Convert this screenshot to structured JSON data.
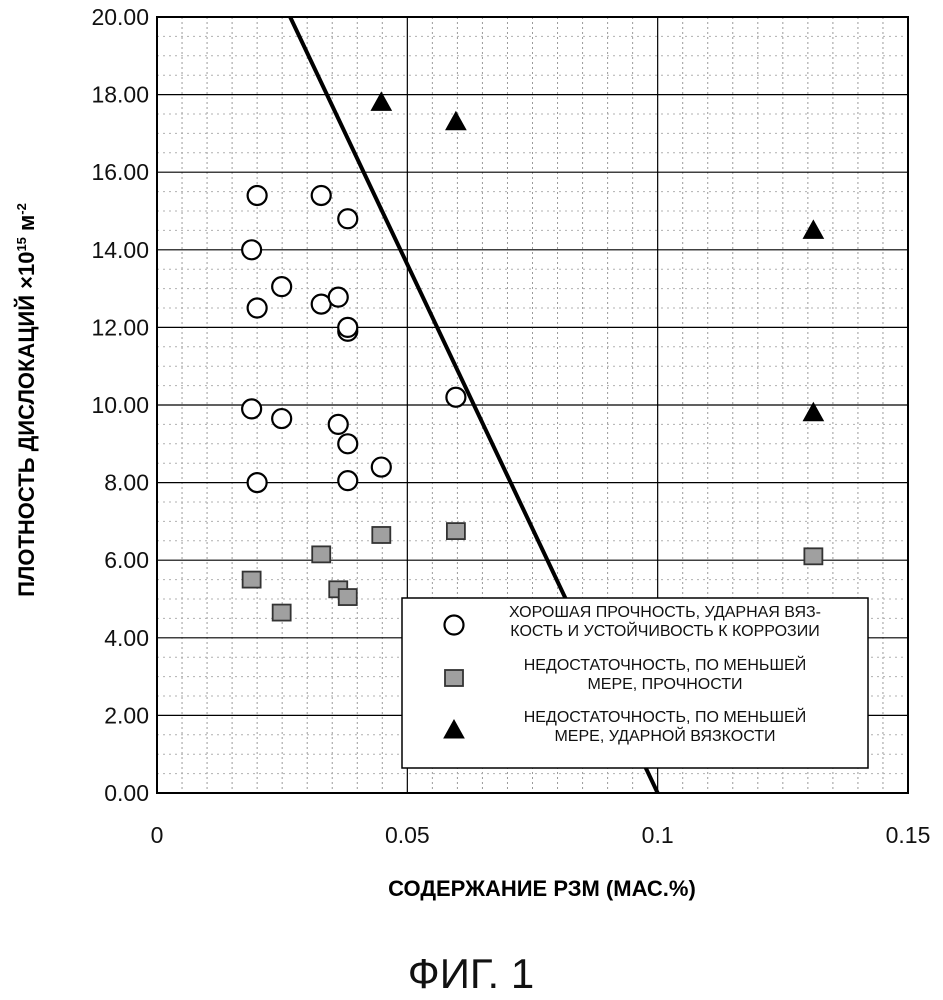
{
  "chart_data": {
    "type": "scatter",
    "xlabel": "СОДЕРЖАНИЕ РЗМ (МАС.%)",
    "ylabel_prefix": "ПЛОТНОСТЬ ДИСЛОКАЦИЙ ×10",
    "ylabel_exp": "15",
    "ylabel_unit": " м",
    "ylabel_unit_exp": "-2",
    "xlim": [
      0,
      0.15
    ],
    "ylim": [
      0,
      20
    ],
    "x_ticks": [
      0,
      0.05,
      0.1,
      0.15
    ],
    "x_tick_labels": [
      "0",
      "0.05",
      "0.1",
      "0.15"
    ],
    "y_ticks": [
      0,
      2,
      4,
      6,
      8,
      10,
      12,
      14,
      16,
      18,
      20
    ],
    "y_tick_labels": [
      "0.00",
      "2.00",
      "4.00",
      "6.00",
      "8.00",
      "10.00",
      "12.00",
      "14.00",
      "16.00",
      "18.00",
      "20.00"
    ],
    "grid": true,
    "legend_position": "bottom-right",
    "boundary_line": {
      "points": [
        [
          0.0266,
          20
        ],
        [
          0.1,
          0
        ]
      ]
    },
    "series": [
      {
        "name_lines": [
          "ХОРОШАЯ ПРОЧНОСТЬ, УДАРНАЯ ВЯЗ-",
          "КОСТЬ И УСТОЙЧИВОСТЬ К КОРРОЗИИ"
        ],
        "marker": "circle",
        "color": "#ffffff",
        "points": [
          [
            0.02,
            15.4
          ],
          [
            0.0328,
            15.4
          ],
          [
            0.0381,
            14.8
          ],
          [
            0.0189,
            14.0
          ],
          [
            0.0249,
            13.05
          ],
          [
            0.0328,
            12.6
          ],
          [
            0.0362,
            12.78
          ],
          [
            0.02,
            12.5
          ],
          [
            0.0381,
            11.9
          ],
          [
            0.0381,
            12.0
          ],
          [
            0.0597,
            10.2
          ],
          [
            0.0189,
            9.9
          ],
          [
            0.0249,
            9.65
          ],
          [
            0.0362,
            9.5
          ],
          [
            0.0381,
            9.0
          ],
          [
            0.0448,
            8.4
          ],
          [
            0.02,
            8.0
          ],
          [
            0.0381,
            8.05
          ]
        ]
      },
      {
        "name_lines": [
          "НЕДОСТАТОЧНОСТЬ, ПО МЕНЬШЕЙ",
          "МЕРЕ, ПРОЧНОСТИ"
        ],
        "marker": "square",
        "color": "#a0a0a0",
        "points": [
          [
            0.0189,
            5.5
          ],
          [
            0.0249,
            4.65
          ],
          [
            0.0328,
            6.15
          ],
          [
            0.0362,
            5.25
          ],
          [
            0.0381,
            5.05
          ],
          [
            0.0448,
            6.65
          ],
          [
            0.0597,
            6.75
          ],
          [
            0.1311,
            6.1
          ]
        ]
      },
      {
        "name_lines": [
          "НЕДОСТАТОЧНОСТЬ, ПО МЕНЬШЕЙ",
          "МЕРЕ, УДАРНОЙ ВЯЗКОСТИ"
        ],
        "marker": "triangle",
        "color": "#000000",
        "points": [
          [
            0.0448,
            17.8
          ],
          [
            0.0597,
            17.3
          ],
          [
            0.1311,
            14.5
          ],
          [
            0.1311,
            9.8
          ]
        ]
      }
    ]
  },
  "figure_caption": "ФИГ. 1"
}
